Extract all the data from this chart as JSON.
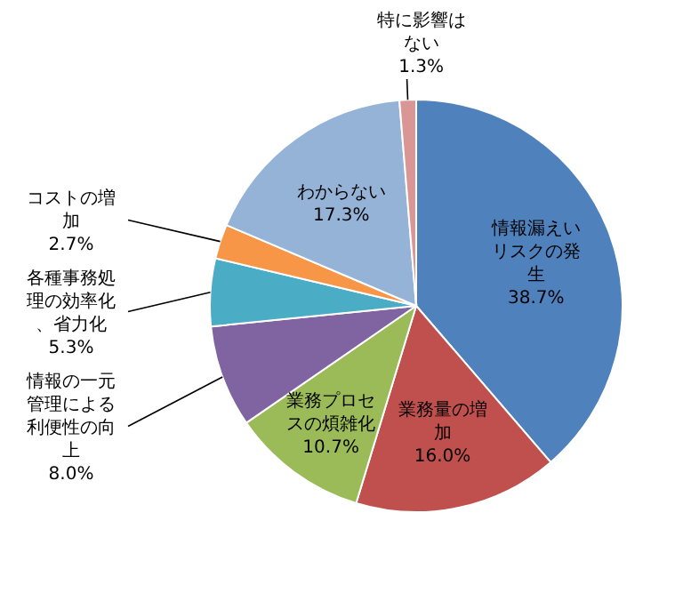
{
  "chart_data": {
    "type": "pie",
    "categories": [
      "情報漏えいリスクの発生",
      "業務量の増加",
      "業務プロセスの煩雑化",
      "情報の一元管理による利便性の向上",
      "各種事務処理の効率化、省力化",
      "コストの増加",
      "わからない",
      "特に影響はない"
    ],
    "values": [
      38.7,
      16.0,
      10.7,
      8.0,
      5.3,
      2.7,
      17.3,
      1.3
    ],
    "value_labels": [
      "38.7%",
      "16.0%",
      "10.7%",
      "8.0%",
      "5.3%",
      "2.7%",
      "17.3%",
      "1.3%"
    ],
    "colors": [
      "#4f81bd",
      "#c0504d",
      "#9bbb59",
      "#8064a2",
      "#4bacc6",
      "#f79646",
      "#95b3d7",
      "#d99694"
    ]
  }
}
